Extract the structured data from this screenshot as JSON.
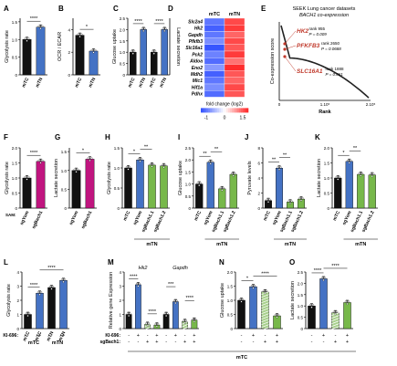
{
  "colors": {
    "black": "#111111",
    "blue": "#4472c4",
    "magenta": "#c0157f",
    "green": "#77b84a",
    "green_light": "#a8d08d",
    "grey": "#b7b7b7",
    "red": "#c0392b",
    "light_blue": "#bcd3ec"
  },
  "chart_data": [
    {
      "id": "A",
      "type": "bar",
      "ylabel": "Glycolysis rate",
      "categories": [
        "mTC",
        "mTN"
      ],
      "values": [
        1.0,
        1.35
      ],
      "ylim": [
        0,
        1.6
      ],
      "yticks": [
        "0",
        "0.5",
        "1.0",
        "1.5"
      ],
      "sig": [
        "****"
      ]
    },
    {
      "id": "B",
      "type": "bar",
      "ylabel": "OCR / ECAR",
      "categories": [
        "mTC",
        "mTN"
      ],
      "values": [
        3.5,
        2.1
      ],
      "ylim": [
        0,
        5
      ],
      "yticks": [
        "0",
        "2",
        "4"
      ],
      "sig": [
        "*"
      ]
    },
    {
      "id": "C",
      "type": "bar",
      "ylabel": "Glucose uptake",
      "ylabel2": "Lactate secretion",
      "categories": [
        "mTC",
        "mTN",
        "mTC",
        "mTN"
      ],
      "values": [
        1.0,
        2.0,
        1.0,
        2.0
      ],
      "ylim": [
        0,
        2.5
      ],
      "yticks": [
        "0",
        "0.5",
        "1.0",
        "1.5",
        "2.0",
        "2.5"
      ],
      "sig": [
        "****",
        "****"
      ]
    },
    {
      "id": "D",
      "type": "heatmap",
      "columns": [
        "mTC",
        "mTN"
      ],
      "rows": [
        "Slc2a4",
        "Hk2",
        "Gapdh",
        "Pfkfb3",
        "Slc16a1",
        "Pck2",
        "Aldoa",
        "Eno2",
        "Mdh2",
        "Mlc1",
        "Hif1a",
        "Pdhx"
      ],
      "values": [
        [
          -1.2,
          1.3
        ],
        [
          -1.4,
          1.4
        ],
        [
          -1.2,
          1.1
        ],
        [
          -1.0,
          1.3
        ],
        [
          -1.5,
          1.2
        ],
        [
          -1.1,
          1.4
        ],
        [
          -1.3,
          1.0
        ],
        [
          -0.9,
          1.5
        ],
        [
          -1.4,
          1.2
        ],
        [
          -1.2,
          1.1
        ],
        [
          -1.0,
          1.3
        ],
        [
          -1.3,
          1.2
        ]
      ],
      "colorbar_label": "fold change (log2)",
      "colorbar_ticks": [
        "-1",
        "0",
        "1.5"
      ]
    },
    {
      "id": "E",
      "type": "line",
      "title": "SEEK Lung cancer datasets",
      "subtitle": "BACH1 co-expression",
      "xlabel": "Rank",
      "ylabel": "Co-expression score",
      "xticks": [
        "0",
        "1.10⁵",
        "2.10⁵"
      ],
      "annotations": [
        {
          "gene": "HK2",
          "rank": "rank 955",
          "p": "P = 0.009"
        },
        {
          "gene": "PFKFB3",
          "rank": "rank 2650",
          "p": "P = 0.0688"
        },
        {
          "gene": "SLC16A1",
          "rank": "rank 1888",
          "p": "P = 0.061"
        }
      ]
    },
    {
      "id": "F",
      "type": "bar",
      "ylabel": "Glycolysis rate",
      "categories": [
        "sgYom",
        "sgBach1"
      ],
      "xtitle": "SAM:",
      "values": [
        1.0,
        1.55
      ],
      "ylim": [
        0,
        2.0
      ],
      "yticks": [
        "0",
        "0.5",
        "1.0",
        "1.5",
        "2.0"
      ],
      "sig": [
        "****"
      ]
    },
    {
      "id": "G",
      "type": "bar",
      "ylabel": "Lactate secretion",
      "categories": [
        "sgYom",
        "sgBach1"
      ],
      "values": [
        1.0,
        1.3
      ],
      "ylim": [
        0,
        1.6
      ],
      "yticks": [
        "0",
        "0.5",
        "1.0",
        "1.5"
      ],
      "sig": [
        "*"
      ]
    },
    {
      "id": "H",
      "type": "bar",
      "ylabel": "Glycolysis rate",
      "categories": [
        "mTC",
        "sgYom",
        "sgBach1.1",
        "sgBach1.2"
      ],
      "values": [
        1.0,
        1.2,
        1.07,
        1.05
      ],
      "ylim": [
        0,
        1.5
      ],
      "yticks": [
        "0",
        "0.5",
        "1.0",
        "1.5"
      ],
      "sig": [
        "*",
        "**"
      ],
      "group": "mTN"
    },
    {
      "id": "I",
      "type": "bar",
      "ylabel": "Glucose uptake",
      "categories": [
        "mTC",
        "sgYom",
        "sgBach1.1",
        "sgBach1.2"
      ],
      "values": [
        1.0,
        1.9,
        0.8,
        1.4
      ],
      "ylim": [
        0,
        2.5
      ],
      "yticks": [
        "0",
        "0.5",
        "1.0",
        "1.5",
        "2.0",
        "2.5"
      ],
      "sig": [
        "**",
        "**"
      ],
      "group": "mTN"
    },
    {
      "id": "J",
      "type": "bar",
      "ylabel": "Pyruvate levels",
      "categories": [
        "mTC",
        "sgYom",
        "sgBach1.1",
        "sgBach1.2"
      ],
      "values": [
        1.0,
        5.3,
        0.8,
        1.2
      ],
      "ylim": [
        0,
        8
      ],
      "yticks": [
        "0",
        "2",
        "4",
        "6",
        "8"
      ],
      "sig": [
        "**",
        "**"
      ],
      "group": "mTN"
    },
    {
      "id": "K",
      "type": "bar",
      "ylabel": "Lactate secretion",
      "categories": [
        "mTC",
        "sgYom",
        "sgBach1.1",
        "sgBach1.2"
      ],
      "values": [
        1.0,
        1.55,
        1.12,
        1.1
      ],
      "ylim": [
        0,
        2.0
      ],
      "yticks": [
        "0",
        "0.5",
        "1.0",
        "1.5",
        "2.0"
      ],
      "sig": [
        "*",
        "**"
      ],
      "group": "mTN"
    },
    {
      "id": "L",
      "type": "bar",
      "ylabel": "Glycolysis rate",
      "categories": [
        "mTC",
        "mTC",
        "mTN",
        "mTN"
      ],
      "ki696": [
        "-",
        "+",
        "-",
        "+"
      ],
      "values": [
        1.0,
        2.5,
        2.9,
        3.4
      ],
      "ylim": [
        0,
        4
      ],
      "yticks": [
        "0",
        "1",
        "2",
        "3",
        "4"
      ],
      "sig": [
        "****",
        "****"
      ]
    },
    {
      "id": "M",
      "type": "bar",
      "ylabel": "Relative gene Expression",
      "groups": [
        "Hk2",
        "Gapdh"
      ],
      "ki696": [
        "-",
        "+",
        "-",
        "+",
        "-",
        "+",
        "-",
        "+"
      ],
      "sgbach1": [
        "-",
        "-",
        "+",
        "+",
        "-",
        "-",
        "+",
        "+"
      ],
      "values": [
        1.0,
        3.1,
        0.3,
        0.25,
        1.0,
        1.9,
        0.5,
        0.6
      ],
      "ylim": [
        0,
        4
      ],
      "yticks": [
        "0",
        "1",
        "2",
        "3",
        "4"
      ],
      "sig": [
        "****",
        "****",
        "***",
        "****"
      ],
      "group": "mTC"
    },
    {
      "id": "N",
      "type": "bar",
      "ylabel": "Glucose uptake",
      "ki696": [
        "-",
        "+",
        "-",
        "+"
      ],
      "sgbach1": [
        "-",
        "-",
        "+",
        "+"
      ],
      "values": [
        1.0,
        1.48,
        1.3,
        0.45
      ],
      "ylim": [
        0,
        2.0
      ],
      "yticks": [
        "0",
        "0.5",
        "1.0",
        "1.5",
        "2.0"
      ],
      "sig": [
        "*",
        "****"
      ],
      "group": "mTC"
    },
    {
      "id": "O",
      "type": "bar",
      "ylabel": "Lactate secretion",
      "ki696": [
        "-",
        "+",
        "-",
        "+"
      ],
      "sgbach1": [
        "-",
        "-",
        "+",
        "+"
      ],
      "values": [
        1.0,
        2.2,
        0.7,
        1.15
      ],
      "ylim": [
        0,
        2.5
      ],
      "yticks": [
        "0",
        "0.5",
        "1.0",
        "1.5",
        "2.0",
        "2.5"
      ],
      "sig": [
        "****",
        "****"
      ],
      "group": "mTC"
    }
  ],
  "labels": {
    "ki696": "KI-696:",
    "sgbach1": "sgBach1:"
  }
}
